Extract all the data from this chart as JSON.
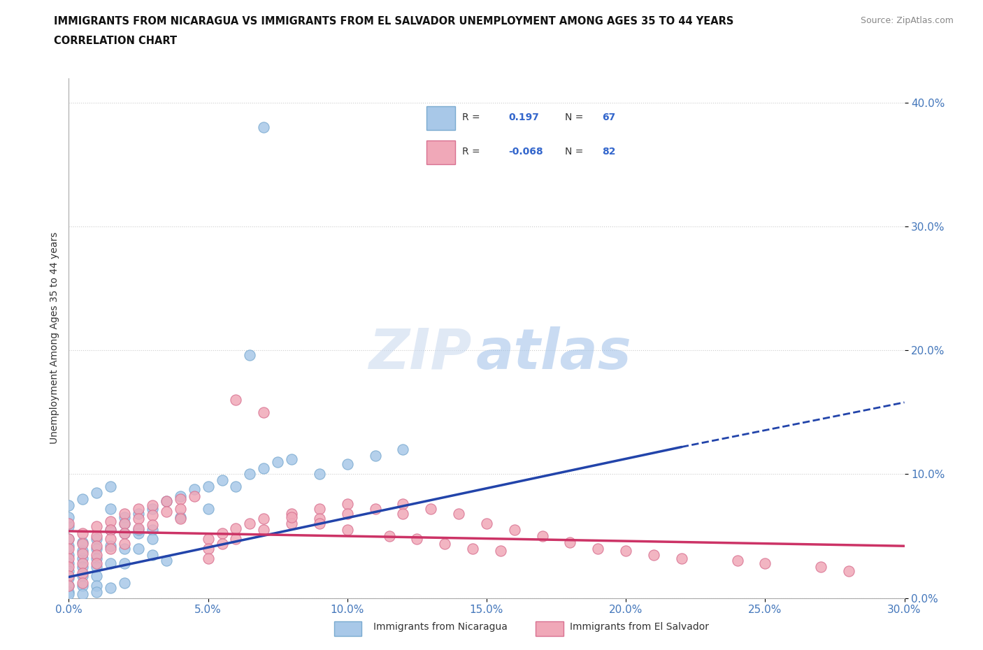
{
  "title_line1": "IMMIGRANTS FROM NICARAGUA VS IMMIGRANTS FROM EL SALVADOR UNEMPLOYMENT AMONG AGES 35 TO 44 YEARS",
  "title_line2": "CORRELATION CHART",
  "source": "Source: ZipAtlas.com",
  "ylabel": "Unemployment Among Ages 35 to 44 years",
  "xlim": [
    0.0,
    0.3
  ],
  "ylim": [
    0.0,
    0.42
  ],
  "xticks": [
    0.0,
    0.05,
    0.1,
    0.15,
    0.2,
    0.25,
    0.3
  ],
  "yticks": [
    0.0,
    0.1,
    0.2,
    0.3,
    0.4
  ],
  "ytick_labels": [
    "0.0%",
    "10.0%",
    "20.0%",
    "30.0%",
    "40.0%"
  ],
  "xtick_labels": [
    "0.0%",
    "5.0%",
    "10.0%",
    "15.0%",
    "20.0%",
    "25.0%",
    "30.0%"
  ],
  "nicaragua_color": "#a8c8e8",
  "nicaragua_edge": "#7aaad0",
  "el_salvador_color": "#f0a8b8",
  "el_salvador_edge": "#d87090",
  "line_blue": "#2244aa",
  "line_pink": "#cc3366",
  "watermark_zip": "ZIP",
  "watermark_atlas": "atlas",
  "blue_line_x0": 0.0,
  "blue_line_y0": 0.017,
  "blue_line_x1": 0.22,
  "blue_line_y1": 0.122,
  "blue_line_dash_x1": 0.3,
  "blue_line_dash_y1": 0.158,
  "pink_line_x0": 0.0,
  "pink_line_y0": 0.054,
  "pink_line_x1": 0.3,
  "pink_line_y1": 0.042,
  "nicaragua_x": [
    0.0,
    0.0,
    0.0,
    0.0,
    0.0,
    0.0,
    0.0,
    0.0,
    0.0,
    0.0,
    0.0,
    0.005,
    0.005,
    0.005,
    0.005,
    0.005,
    0.005,
    0.01,
    0.01,
    0.01,
    0.01,
    0.01,
    0.01,
    0.015,
    0.015,
    0.015,
    0.02,
    0.02,
    0.02,
    0.02,
    0.025,
    0.025,
    0.03,
    0.03,
    0.035,
    0.04,
    0.04,
    0.045,
    0.05,
    0.05,
    0.055,
    0.06,
    0.065,
    0.07,
    0.075,
    0.08,
    0.09,
    0.1,
    0.11,
    0.12,
    0.065,
    0.07,
    0.015,
    0.02,
    0.025,
    0.03,
    0.005,
    0.01,
    0.015,
    0.02,
    0.0,
    0.005,
    0.01,
    0.015,
    0.025,
    0.03,
    0.035
  ],
  "nicaragua_y": [
    0.035,
    0.028,
    0.022,
    0.016,
    0.01,
    0.005,
    0.042,
    0.048,
    0.058,
    0.065,
    0.003,
    0.032,
    0.038,
    0.025,
    0.018,
    0.01,
    0.045,
    0.048,
    0.04,
    0.032,
    0.025,
    0.018,
    0.01,
    0.055,
    0.042,
    0.028,
    0.065,
    0.052,
    0.04,
    0.028,
    0.068,
    0.052,
    0.072,
    0.055,
    0.078,
    0.082,
    0.065,
    0.088,
    0.09,
    0.072,
    0.095,
    0.09,
    0.1,
    0.105,
    0.11,
    0.112,
    0.1,
    0.108,
    0.115,
    0.12,
    0.196,
    0.38,
    0.072,
    0.06,
    0.055,
    0.048,
    0.003,
    0.005,
    0.008,
    0.012,
    0.075,
    0.08,
    0.085,
    0.09,
    0.04,
    0.035,
    0.03
  ],
  "el_salvador_x": [
    0.0,
    0.0,
    0.0,
    0.0,
    0.0,
    0.0,
    0.0,
    0.005,
    0.005,
    0.005,
    0.005,
    0.005,
    0.005,
    0.01,
    0.01,
    0.01,
    0.01,
    0.01,
    0.015,
    0.015,
    0.015,
    0.015,
    0.02,
    0.02,
    0.02,
    0.02,
    0.025,
    0.025,
    0.025,
    0.03,
    0.03,
    0.03,
    0.035,
    0.035,
    0.04,
    0.04,
    0.04,
    0.045,
    0.05,
    0.05,
    0.05,
    0.055,
    0.055,
    0.06,
    0.06,
    0.065,
    0.07,
    0.07,
    0.08,
    0.08,
    0.09,
    0.09,
    0.1,
    0.1,
    0.11,
    0.12,
    0.12,
    0.13,
    0.14,
    0.15,
    0.16,
    0.17,
    0.18,
    0.19,
    0.2,
    0.21,
    0.22,
    0.24,
    0.25,
    0.27,
    0.28,
    0.06,
    0.07,
    0.08,
    0.09,
    0.1,
    0.115,
    0.125,
    0.135,
    0.145,
    0.155
  ],
  "el_salvador_y": [
    0.048,
    0.04,
    0.032,
    0.025,
    0.018,
    0.01,
    0.06,
    0.052,
    0.044,
    0.036,
    0.028,
    0.02,
    0.012,
    0.058,
    0.05,
    0.042,
    0.035,
    0.028,
    0.062,
    0.055,
    0.048,
    0.04,
    0.068,
    0.06,
    0.052,
    0.044,
    0.072,
    0.064,
    0.056,
    0.075,
    0.067,
    0.059,
    0.078,
    0.07,
    0.08,
    0.072,
    0.064,
    0.082,
    0.048,
    0.04,
    0.032,
    0.052,
    0.044,
    0.056,
    0.048,
    0.06,
    0.064,
    0.055,
    0.068,
    0.06,
    0.072,
    0.064,
    0.076,
    0.068,
    0.072,
    0.076,
    0.068,
    0.072,
    0.068,
    0.06,
    0.055,
    0.05,
    0.045,
    0.04,
    0.038,
    0.035,
    0.032,
    0.03,
    0.028,
    0.025,
    0.022,
    0.16,
    0.15,
    0.065,
    0.06,
    0.055,
    0.05,
    0.048,
    0.044,
    0.04,
    0.038
  ]
}
